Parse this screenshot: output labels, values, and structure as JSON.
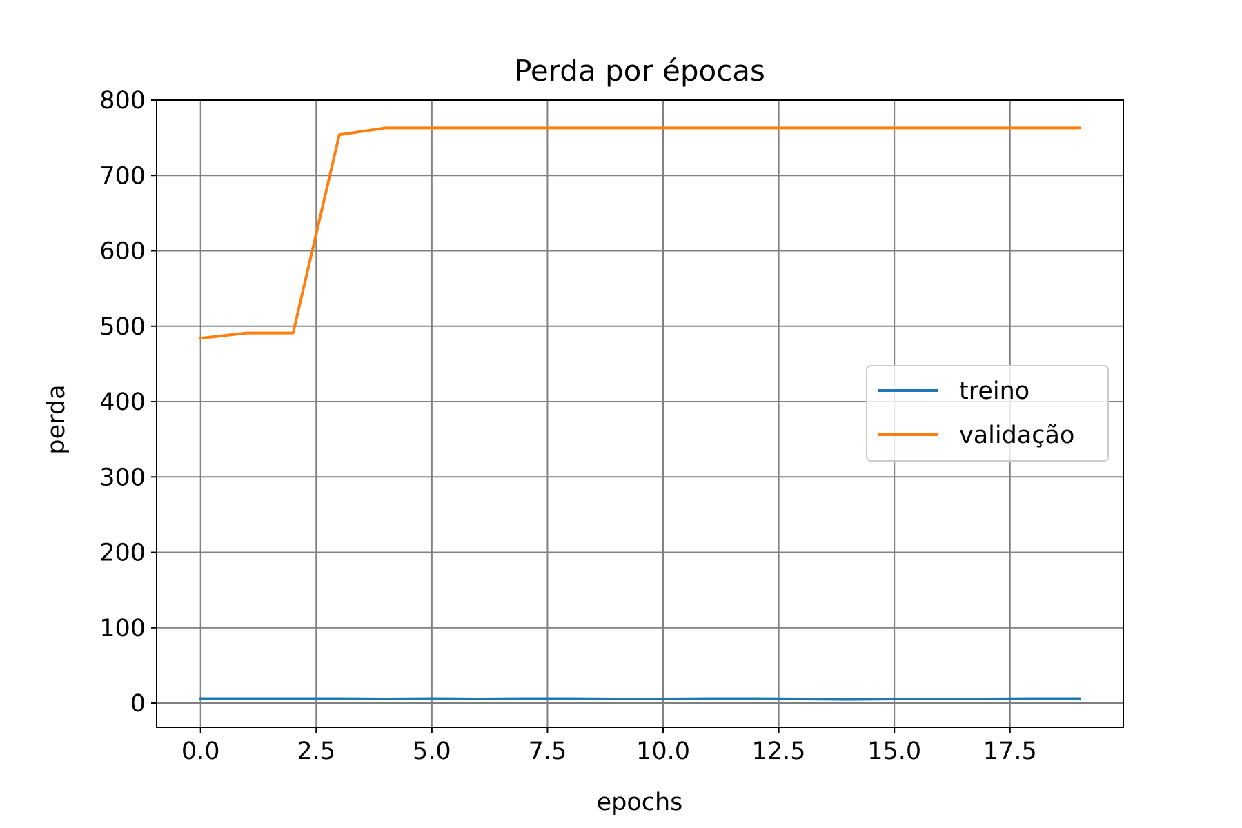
{
  "chart_data": {
    "type": "line",
    "title": "Perda por épocas",
    "xlabel": "epochs",
    "ylabel": "perda",
    "xlim": [
      -0.95,
      19.95
    ],
    "ylim": [
      -32,
      800
    ],
    "xticks": [
      0.0,
      2.5,
      5.0,
      7.5,
      10.0,
      12.5,
      15.0,
      17.5
    ],
    "xtick_labels": [
      "0.0",
      "2.5",
      "5.0",
      "7.5",
      "10.0",
      "12.5",
      "15.0",
      "17.5"
    ],
    "yticks": [
      0,
      100,
      200,
      300,
      400,
      500,
      600,
      700,
      800
    ],
    "ytick_labels": [
      "0",
      "100",
      "200",
      "300",
      "400",
      "500",
      "600",
      "700",
      "800"
    ],
    "grid": true,
    "legend_position": "center-right",
    "x": [
      0,
      1,
      2,
      3,
      4,
      5,
      6,
      7,
      8,
      9,
      10,
      11,
      12,
      13,
      14,
      15,
      16,
      17,
      18,
      19
    ],
    "series": [
      {
        "name": "treino",
        "color": "#1f77b4",
        "values": [
          6,
          6,
          6,
          6,
          5.5,
          6,
          5.5,
          6,
          6,
          5.5,
          5.5,
          6,
          6,
          5.5,
          5,
          5.5,
          5.5,
          5.5,
          6,
          6
        ]
      },
      {
        "name": "validação",
        "color": "#ff7f0e",
        "values": [
          484,
          491,
          491,
          754,
          763,
          763,
          763,
          763,
          763,
          763,
          763,
          763,
          763,
          763,
          763,
          763,
          763,
          763,
          763,
          763
        ]
      }
    ]
  }
}
